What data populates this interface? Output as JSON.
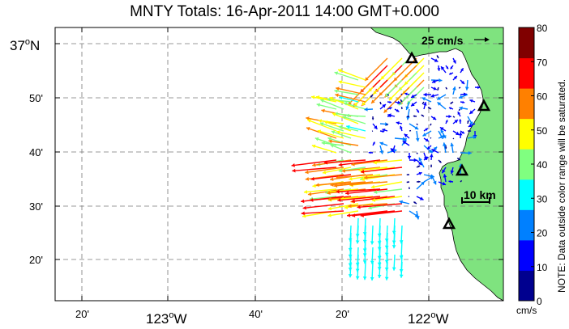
{
  "title": "MNTY Totals: 16-Apr-2011 14:00 GMT+0.000",
  "scale_label": "25 cm/s",
  "scale_bar_label": "10 km",
  "note": "NOTE: Data outside color range will be saturated.",
  "colorbar": {
    "unit": "cm/s",
    "ticks": [
      "80",
      "70",
      "60",
      "50",
      "40",
      "30",
      "20",
      "10",
      "0"
    ],
    "colors": [
      "#00008f",
      "#0000ff",
      "#0080ff",
      "#00ffff",
      "#80ff80",
      "#ffff00",
      "#ff8000",
      "#ff0000",
      "#800000"
    ]
  },
  "y_ticks": [
    {
      "label": "37",
      "deg": "o",
      "hemi": "N"
    },
    {
      "label": "50'"
    },
    {
      "label": "40'"
    },
    {
      "label": "30'"
    },
    {
      "label": "20'"
    }
  ],
  "x_ticks": [
    {
      "label": "20'"
    },
    {
      "label": "123",
      "deg": "o",
      "hemi": "W"
    },
    {
      "label": "40'"
    },
    {
      "label": "20'"
    },
    {
      "label": "122",
      "deg": "o",
      "hemi": "W"
    }
  ],
  "land_color": "#7fe37f",
  "stations": 5
}
